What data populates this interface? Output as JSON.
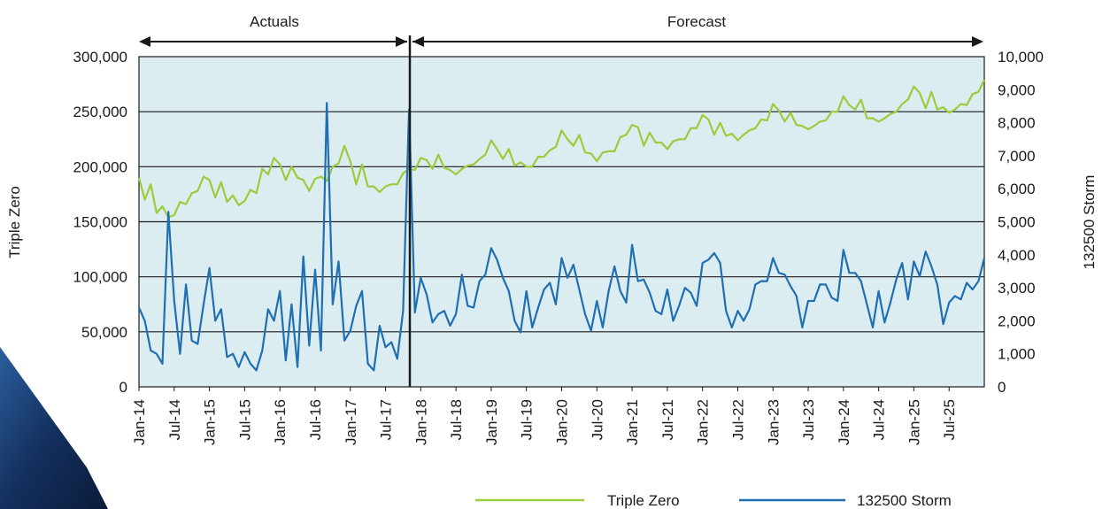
{
  "chart_data": {
    "type": "line",
    "title": "",
    "left_axis": {
      "label": "Triple Zero",
      "ylim": [
        0,
        300000
      ],
      "ticks": [
        "0",
        "50,000",
        "100,000",
        "150,000",
        "200,000",
        "250,000",
        "300,000"
      ]
    },
    "right_axis": {
      "label": "132500 Storm",
      "ylim": [
        0,
        10000
      ],
      "ticks": [
        "0",
        "1,000",
        "2,000",
        "3,000",
        "4,000",
        "5,000",
        "6,000",
        "7,000",
        "8,000",
        "9,000",
        "10,000"
      ]
    },
    "x_tick_labels": [
      "Jan-14",
      "Jul-14",
      "Jan-15",
      "Jul-15",
      "Jan-16",
      "Jul-16",
      "Jan-17",
      "Jul-17",
      "Jan-18",
      "Jul-18",
      "Jan-19",
      "Jul-19",
      "Jan-20",
      "Jul-20",
      "Jan-21",
      "Jul-21",
      "Jan-22",
      "Jul-22",
      "Jan-23",
      "Jul-23",
      "Jan-24",
      "Jul-24",
      "Jan-25",
      "Jul-25"
    ],
    "x_start": "Jan-14",
    "periods": [
      {
        "label": "Actuals",
        "from": "Jan-14",
        "to": "Dec-17"
      },
      {
        "label": "Forecast",
        "from": "Dec-17",
        "to": "Dec-25"
      }
    ],
    "grid": true,
    "legend_position": "bottom-right",
    "colors": {
      "plot_background": "#dcedf1",
      "triple_zero": "#9ccb3b",
      "storm": "#1f6fb2",
      "decor": "#1b3a6e"
    },
    "series": [
      {
        "name": "Triple Zero",
        "axis": "left",
        "values": [
          190000,
          170000,
          184000,
          158000,
          164000,
          154000,
          156000,
          168000,
          166000,
          176000,
          178000,
          191000,
          188000,
          172000,
          186000,
          168000,
          174000,
          165000,
          169000,
          179000,
          176000,
          198000,
          193000,
          208000,
          202000,
          188000,
          200000,
          190000,
          188000,
          178000,
          189000,
          191000,
          187000,
          200000,
          203000,
          219000,
          205000,
          184000,
          202000,
          182000,
          182000,
          177000,
          182000,
          184000,
          184000,
          194000,
          198000,
          197000,
          208000,
          206000,
          198000,
          211000,
          199000,
          197000,
          193000,
          198000,
          201000,
          202000,
          207000,
          211000,
          224000,
          216000,
          207000,
          216000,
          201000,
          204000,
          200000,
          200000,
          209000,
          209000,
          215000,
          218000,
          233000,
          225000,
          219000,
          229000,
          213000,
          212000,
          205000,
          213000,
          214000,
          214000,
          227000,
          229000,
          238000,
          236000,
          219000,
          231000,
          222000,
          222000,
          216000,
          223000,
          225000,
          225000,
          235000,
          235000,
          247000,
          243000,
          229000,
          240000,
          228000,
          230000,
          224000,
          229000,
          233000,
          235000,
          243000,
          242000,
          257000,
          251000,
          241000,
          249000,
          238000,
          237000,
          234000,
          237000,
          241000,
          242000,
          250000,
          250000,
          264000,
          256000,
          252000,
          261000,
          244000,
          244000,
          241000,
          244000,
          248000,
          250000,
          257000,
          261000,
          273000,
          267000,
          253000,
          268000,
          252000,
          254000,
          249000,
          252000,
          257000,
          256000,
          266000,
          268000,
          279000
        ]
      },
      {
        "name": "132500 Storm",
        "axis": "right",
        "values": [
          2400,
          2000,
          1100,
          1000,
          700,
          5300,
          2600,
          1000,
          3100,
          1400,
          1300,
          2500,
          3600,
          2000,
          2350,
          900,
          1000,
          600,
          1050,
          700,
          500,
          1100,
          2350,
          2000,
          2900,
          800,
          2500,
          600,
          3950,
          1250,
          3550,
          1100,
          8600,
          2500,
          3800,
          1400,
          1700,
          2450,
          2900,
          700,
          500,
          1850,
          1200,
          1350,
          850,
          2300,
          8400,
          2250,
          3300,
          2800,
          1950,
          2200,
          2300,
          1850,
          2200,
          3400,
          2450,
          2400,
          3200,
          3400,
          4200,
          3850,
          3300,
          2900,
          2000,
          1650,
          2900,
          1800,
          2400,
          2950,
          3150,
          2500,
          3900,
          3300,
          3700,
          2950,
          2200,
          1700,
          2600,
          1800,
          2900,
          3650,
          2900,
          2550,
          4300,
          3200,
          3250,
          2850,
          2300,
          2200,
          2950,
          2000,
          2450,
          3000,
          2850,
          2450,
          3750,
          3850,
          4050,
          3750,
          2300,
          1800,
          2300,
          2000,
          2350,
          3100,
          3200,
          3200,
          3900,
          3450,
          3400,
          3050,
          2750,
          1800,
          2600,
          2600,
          3100,
          3100,
          2700,
          2600,
          4150,
          3450,
          3450,
          3200,
          2500,
          1800,
          2900,
          1950,
          2550,
          3250,
          3750,
          2650,
          3800,
          3350,
          4100,
          3650,
          3100,
          1900,
          2550,
          2750,
          2650,
          3150,
          2950,
          3200,
          3900
        ]
      }
    ]
  }
}
